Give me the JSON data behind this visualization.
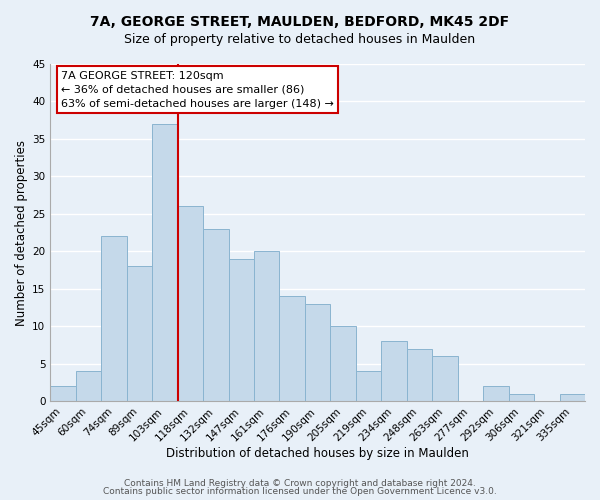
{
  "title": "7A, GEORGE STREET, MAULDEN, BEDFORD, MK45 2DF",
  "subtitle": "Size of property relative to detached houses in Maulden",
  "xlabel": "Distribution of detached houses by size in Maulden",
  "ylabel": "Number of detached properties",
  "bin_labels": [
    "45sqm",
    "60sqm",
    "74sqm",
    "89sqm",
    "103sqm",
    "118sqm",
    "132sqm",
    "147sqm",
    "161sqm",
    "176sqm",
    "190sqm",
    "205sqm",
    "219sqm",
    "234sqm",
    "248sqm",
    "263sqm",
    "277sqm",
    "292sqm",
    "306sqm",
    "321sqm",
    "335sqm"
  ],
  "bar_heights": [
    2,
    4,
    22,
    18,
    37,
    26,
    23,
    19,
    20,
    14,
    13,
    10,
    4,
    8,
    7,
    6,
    0,
    2,
    1,
    0,
    1
  ],
  "bar_color": "#c5d9ea",
  "bar_edge_color": "#8ab4d0",
  "marker_between_index": 4,
  "marker_color": "#cc0000",
  "ylim": [
    0,
    45
  ],
  "yticks": [
    0,
    5,
    10,
    15,
    20,
    25,
    30,
    35,
    40,
    45
  ],
  "annotation_title": "7A GEORGE STREET: 120sqm",
  "annotation_line1": "← 36% of detached houses are smaller (86)",
  "annotation_line2": "63% of semi-detached houses are larger (148) →",
  "annotation_box_color": "#ffffff",
  "annotation_box_edge": "#cc0000",
  "footer_line1": "Contains HM Land Registry data © Crown copyright and database right 2024.",
  "footer_line2": "Contains public sector information licensed under the Open Government Licence v3.0.",
  "background_color": "#e8f0f8",
  "plot_background": "#e8f0f8",
  "grid_color": "#ffffff",
  "title_fontsize": 10,
  "subtitle_fontsize": 9,
  "axis_label_fontsize": 8.5,
  "tick_fontsize": 7.5,
  "annotation_fontsize": 8,
  "footer_fontsize": 6.5
}
